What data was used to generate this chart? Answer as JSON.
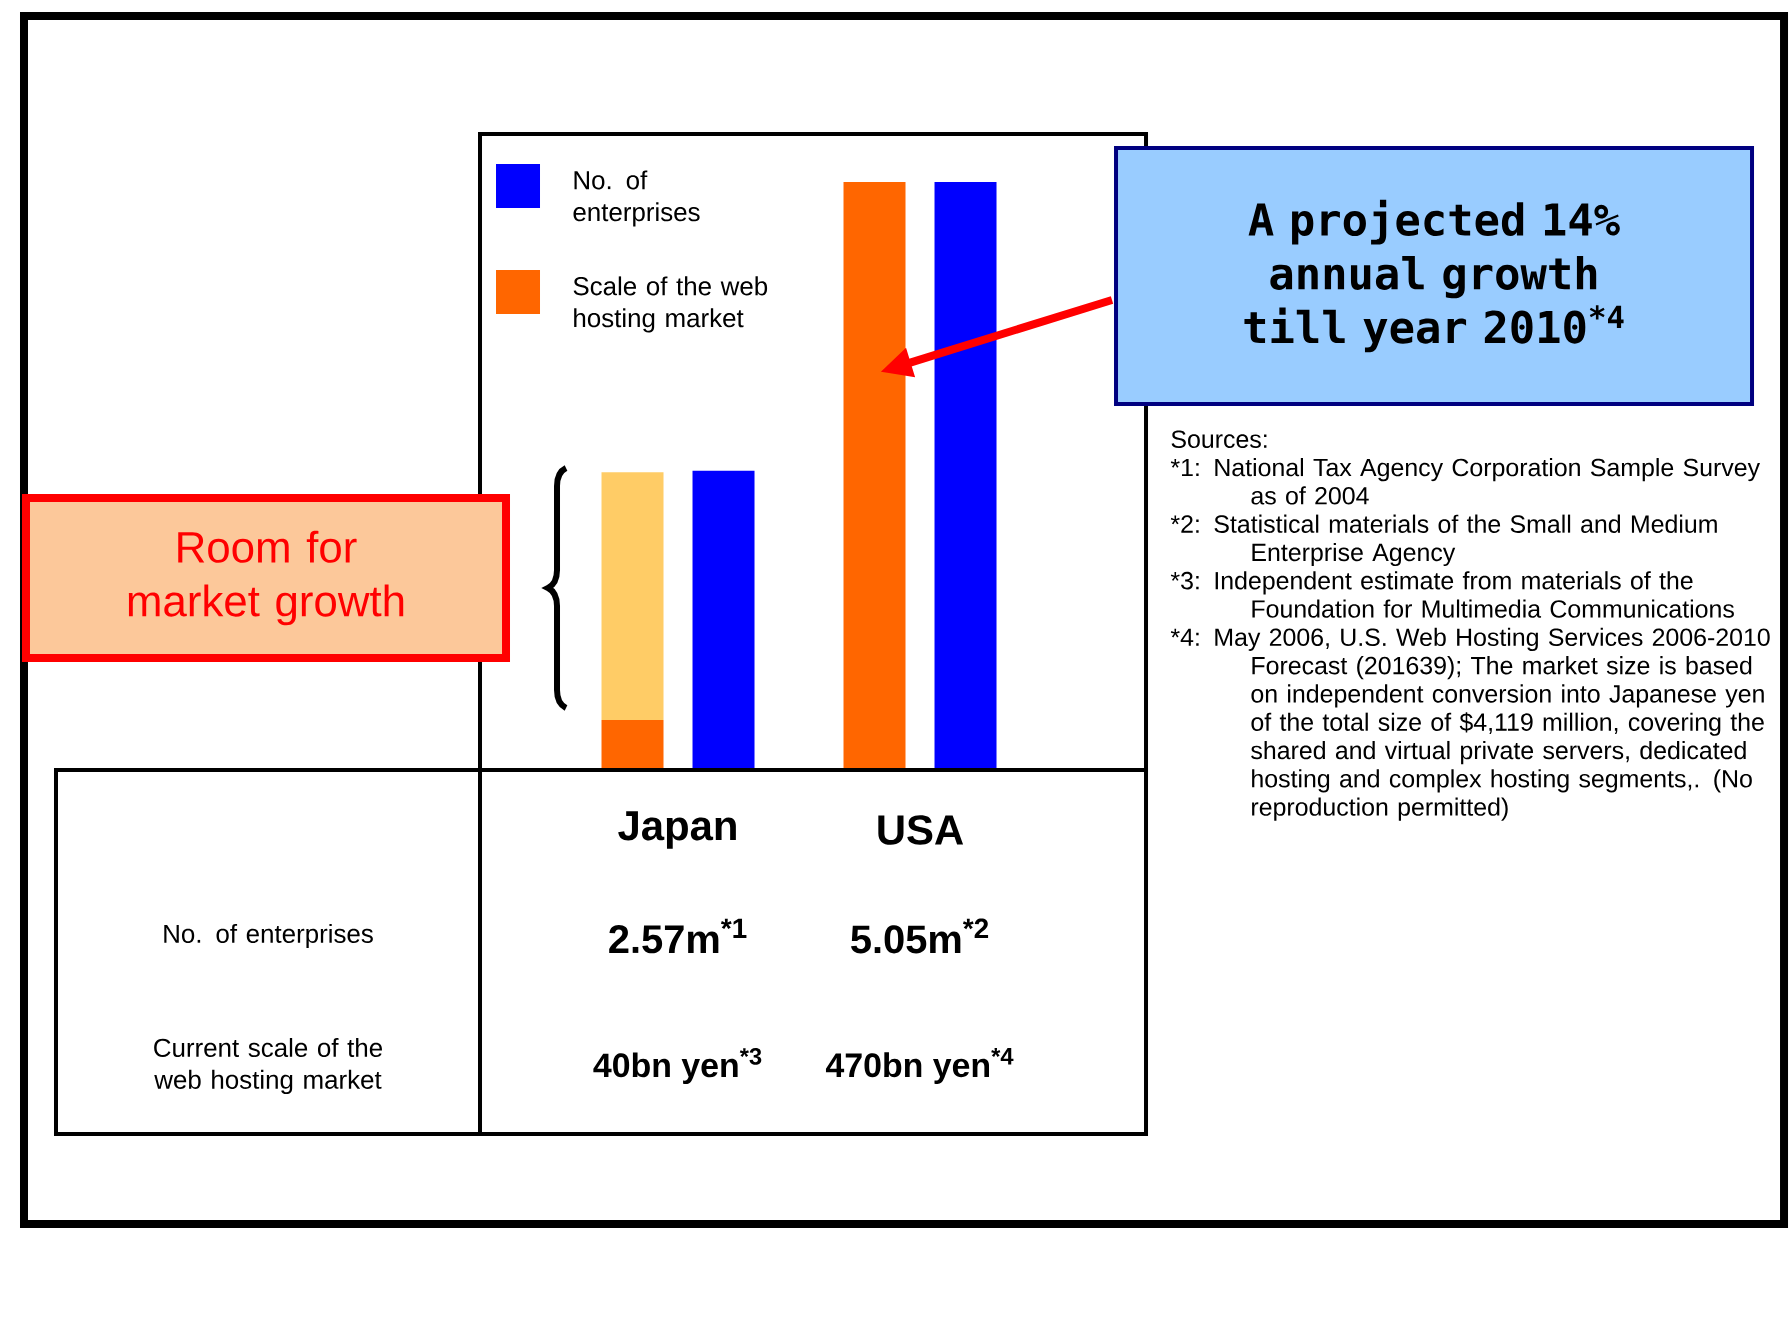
{
  "chart_data": {
    "type": "bar",
    "stacked": true,
    "legend": "top left",
    "tick_labels": false,
    "categories": [
      "Japan",
      "USA"
    ],
    "series": [
      {
        "name": "No. of enterprises",
        "color": "#0000ff",
        "axis": "y",
        "values": [
          2570000,
          5050000
        ],
        "value_labels": [
          "2.57m$^{*1}$",
          "5.05m$^{*2}$"
        ]
      },
      {
        "name": "Scale of the web hosting market",
        "color": "#ff6600",
        "axis": "y2",
        "values": [
          40000000000,
          470000000000
        ],
        "value_labels": [
          "40bn yen$^{*3}$",
          "470bn yen$^{*4}$"
        ]
      },
      {
        "color": "#ffcc66",
        "axis": "y2",
        "values": [
          198000000000,
          null
        ]
      }
    ],
    "annotations": [
      "Room for market growth",
      "A projected 14% annual growth till year 2010$^{*4}$",
      "No. of enterprises",
      "Current scale of the web hosting market",
      "Sources:",
      "*1: National Tax Agency Corporation Sample Survey as of 2004",
      "*2: Statistical materials of the Small and Medium Enterprise Agency",
      "*3: Independent estimate from materials of the Foundation for Multimedia Communications",
      "*4: May 2006, U.S. Web Hosting Services 2006-2010 Forecast (201639); The market size is based on independent conversion into Japanese yen of the total size of $4,119 million, covering the shared and virtual private servers, dedicated hosting and complex hosting segments,. (No reproduction permitted)"
    ]
  }
}
